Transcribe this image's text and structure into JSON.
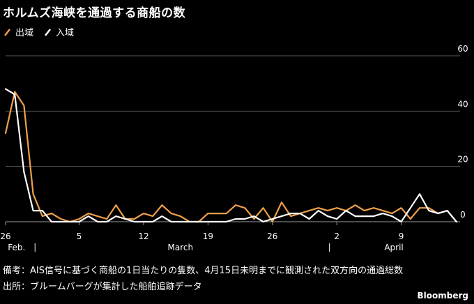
{
  "title": "ホルムズ海峡を通過する商船の数",
  "legend": {
    "outbound": "出域",
    "inbound": "入域"
  },
  "note": "備考：AIS信号に基づく商船の1日当たりの隻数、4月15日未明までに観測された双方向の通過総数",
  "source": "出所：ブルームバーグが集計した船舶追跡データ",
  "brand": "Bloomberg",
  "chart_data": {
    "type": "line",
    "ylim": [
      0,
      60
    ],
    "yticks": [
      "60",
      "40",
      "20",
      "0"
    ],
    "ytick_values": [
      60,
      40,
      20,
      0
    ],
    "xticks": [
      {
        "label": "26",
        "day": 0
      },
      {
        "label": "5",
        "day": 8
      },
      {
        "label": "12",
        "day": 15
      },
      {
        "label": "19",
        "day": 22
      },
      {
        "label": "26",
        "day": 29
      },
      {
        "label": "2",
        "day": 36
      },
      {
        "label": "9",
        "day": 43
      }
    ],
    "month_labels": [
      {
        "label": "Feb.",
        "day": 1.2
      },
      {
        "label": "March",
        "day": 19
      },
      {
        "label": "April",
        "day": 42.2
      }
    ],
    "month_separators": [
      3.2,
      35.2
    ],
    "colors": {
      "outbound": "#f0a04b",
      "inbound": "#ffffff"
    },
    "series": [
      {
        "name": "出域",
        "key": "outbound",
        "values": [
          32,
          47,
          42,
          10,
          2,
          3,
          1,
          0,
          1,
          3,
          2,
          1,
          6,
          1,
          1,
          3,
          2,
          6,
          3,
          2,
          0,
          0,
          3,
          3,
          3,
          6,
          5,
          1,
          5,
          0,
          7,
          2,
          3,
          4,
          5,
          4,
          5,
          4,
          6,
          4,
          5,
          4,
          3,
          5,
          1,
          5,
          5,
          3,
          4,
          0
        ]
      },
      {
        "name": "入域",
        "key": "inbound",
        "values": [
          48,
          46,
          18,
          4,
          4,
          0,
          0,
          0,
          0,
          2,
          0,
          0,
          2,
          1,
          0,
          0,
          0,
          2,
          0,
          0,
          0,
          0,
          0,
          0,
          0,
          1,
          1,
          2,
          0,
          1,
          2,
          3,
          3,
          1,
          4,
          2,
          1,
          4,
          2,
          2,
          2,
          3,
          2,
          0,
          5,
          10,
          4,
          3,
          4,
          0
        ]
      }
    ]
  }
}
